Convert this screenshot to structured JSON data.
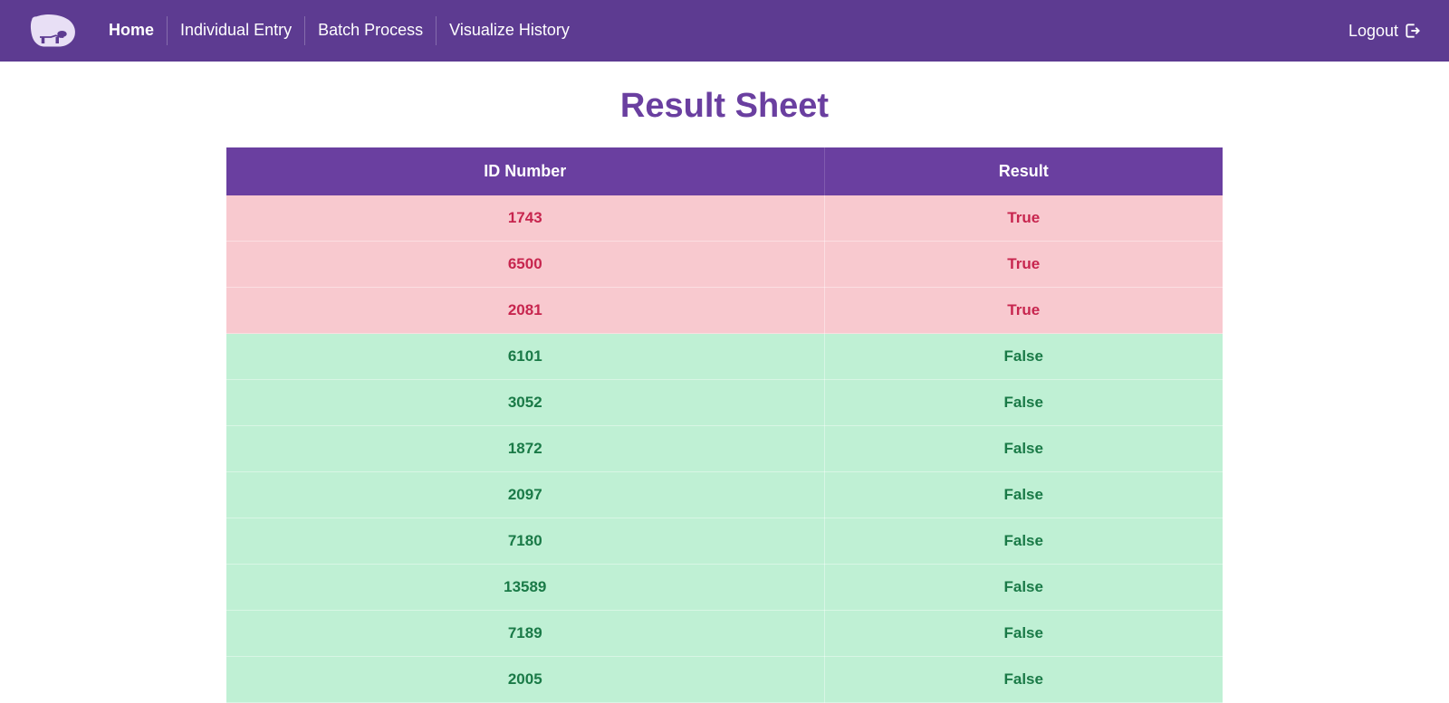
{
  "navbar": {
    "links": [
      {
        "label": "Home",
        "active": true
      },
      {
        "label": "Individual Entry",
        "active": false
      },
      {
        "label": "Batch Process",
        "active": false
      },
      {
        "label": "Visualize History",
        "active": false
      }
    ],
    "logout_label": "Logout"
  },
  "page": {
    "title": "Result Sheet"
  },
  "table": {
    "columns": [
      "ID Number",
      "Result"
    ],
    "column_widths": [
      "60%",
      "40%"
    ],
    "rows": [
      {
        "id": "1743",
        "result": "True",
        "result_type": "true"
      },
      {
        "id": "6500",
        "result": "True",
        "result_type": "true"
      },
      {
        "id": "2081",
        "result": "True",
        "result_type": "true"
      },
      {
        "id": "6101",
        "result": "False",
        "result_type": "false"
      },
      {
        "id": "3052",
        "result": "False",
        "result_type": "false"
      },
      {
        "id": "1872",
        "result": "False",
        "result_type": "false"
      },
      {
        "id": "2097",
        "result": "False",
        "result_type": "false"
      },
      {
        "id": "7180",
        "result": "False",
        "result_type": "false"
      },
      {
        "id": "13589",
        "result": "False",
        "result_type": "false"
      },
      {
        "id": "7189",
        "result": "False",
        "result_type": "false"
      },
      {
        "id": "2005",
        "result": "False",
        "result_type": "false"
      }
    ]
  },
  "colors": {
    "navbar_bg": "#5d3b91",
    "accent": "#6a3fa0",
    "true_row_bg": "#f8c9cf",
    "true_row_text": "#c7254e",
    "false_row_bg": "#bff0d4",
    "false_row_text": "#1a7a47",
    "white": "#ffffff"
  }
}
